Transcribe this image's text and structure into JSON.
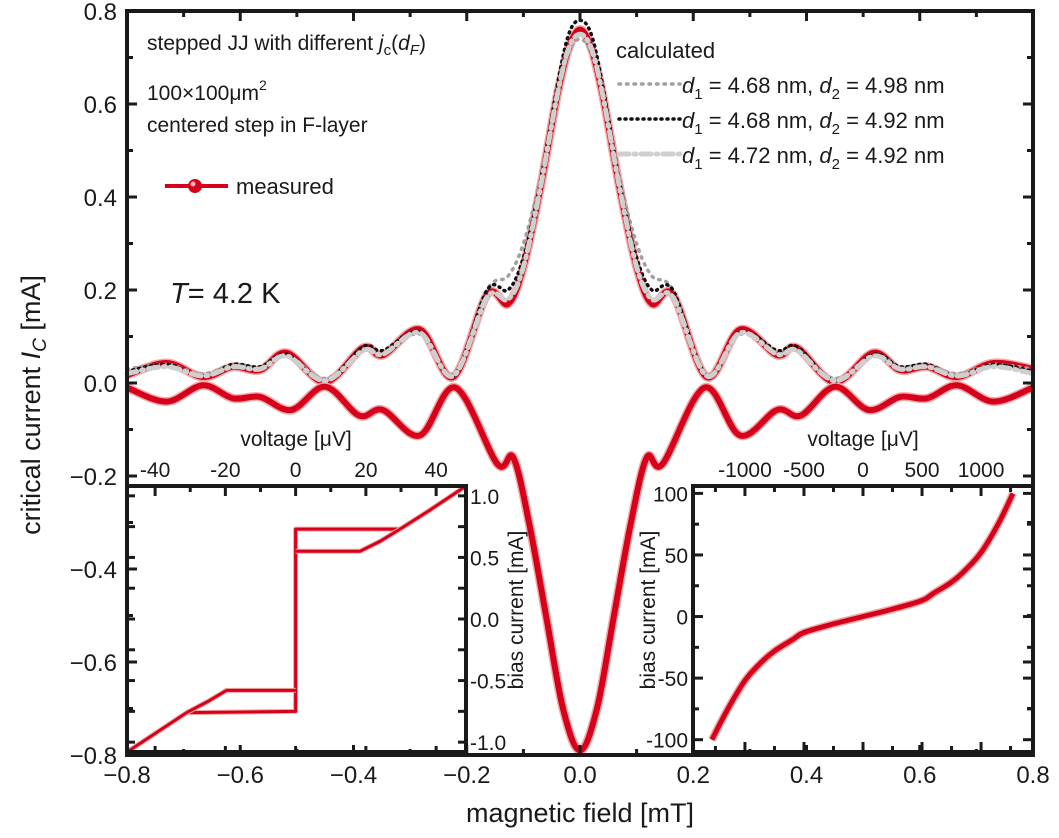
{
  "colors": {
    "measured": "#d7001c",
    "measured_halo": "#f2a9a4",
    "calc1": "#a0a0a0",
    "calc2": "#111111",
    "calc3": "#cfcfcf",
    "axis": "#1a1a1a"
  },
  "annotations": {
    "line1_pre": "stepped JJ with different ",
    "line1_j": "j",
    "line1_c": "c",
    "line1_paren": "(",
    "line1_d": "d",
    "line1_F": "F",
    "line1_close": ")",
    "line2": "100×100μm",
    "line2_sup": "2",
    "line3": "centered step in F-layer",
    "temp_T": "T",
    "temp_val": "= 4.2 K"
  },
  "legend": {
    "measured": "measured",
    "calculated_title": "calculated",
    "entries": [
      {
        "d1": "d",
        "s1": "1",
        "v1": " = 4.68 nm, ",
        "d2": "d",
        "s2": "2",
        "v2": " = 4.98 nm",
        "style": "dotted-gray"
      },
      {
        "d1": "d",
        "s1": "1",
        "v1": " = 4.68 nm, ",
        "d2": "d",
        "s2": "2",
        "v2": " = 4.92 nm",
        "style": "dotted-black"
      },
      {
        "d1": "d",
        "s1": "1",
        "v1": " = 4.72 nm, ",
        "d2": "d",
        "s2": "2",
        "v2": " = 4.92 nm",
        "style": "dash-dot-lightgray"
      }
    ]
  },
  "chart_data": [
    {
      "type": "line",
      "xlabel": "magnetic field [mT]",
      "ylabel_pre": "critical current ",
      "ylabel_I": "I",
      "ylabel_C": "C",
      "ylabel_post": " [mA]",
      "xlim": [
        -0.8,
        0.8
      ],
      "ylim": [
        -0.8,
        0.8
      ],
      "xticks": [
        "-0.8",
        "-0.6",
        "-0.4",
        "-0.2",
        "0.0",
        "0.2",
        "0.4",
        "0.6",
        "0.8"
      ],
      "yticks": [
        "-0.8",
        "-0.6",
        "-0.4",
        "-0.2",
        "0.0",
        "0.2",
        "0.4",
        "0.6",
        "0.8"
      ],
      "grid": false,
      "series": [
        {
          "name": "measured",
          "branch": "positive",
          "x": [
            -0.8,
            -0.73,
            -0.666,
            -0.613,
            -0.565,
            -0.518,
            -0.45,
            -0.383,
            -0.348,
            -0.283,
            -0.224,
            -0.164,
            -0.127,
            -0.1,
            -0.07,
            -0.04,
            -0.02,
            0,
            0.02,
            0.04,
            0.07,
            0.1,
            0.127,
            0.164,
            0.224,
            0.283,
            0.348,
            0.383,
            0.45,
            0.518,
            0.565,
            0.613,
            0.666,
            0.73,
            0.8
          ],
          "y": [
            0.017,
            0.043,
            0.013,
            0.035,
            0.028,
            0.065,
            0.002,
            0.076,
            0.06,
            0.115,
            0.013,
            0.19,
            0.17,
            0.25,
            0.42,
            0.62,
            0.72,
            0.76,
            0.72,
            0.62,
            0.42,
            0.25,
            0.17,
            0.19,
            0.013,
            0.115,
            0.06,
            0.076,
            0.002,
            0.065,
            0.028,
            0.035,
            0.013,
            0.043,
            0.03
          ]
        },
        {
          "name": "measured",
          "branch": "negative",
          "x": [
            -0.8,
            -0.73,
            -0.666,
            -0.613,
            -0.565,
            -0.51,
            -0.45,
            -0.39,
            -0.348,
            -0.283,
            -0.22,
            -0.146,
            -0.118,
            -0.09,
            -0.06,
            -0.03,
            0,
            0.03,
            0.06,
            0.09,
            0.118,
            0.146,
            0.22,
            0.283,
            0.348,
            0.39,
            0.45,
            0.51,
            0.565,
            0.613,
            0.666,
            0.73,
            0.8
          ],
          "y": [
            -0.01,
            -0.04,
            -0.005,
            -0.033,
            -0.03,
            -0.058,
            -0.008,
            -0.07,
            -0.058,
            -0.113,
            -0.01,
            -0.174,
            -0.16,
            -0.3,
            -0.5,
            -0.7,
            -0.79,
            -0.7,
            -0.5,
            -0.3,
            -0.16,
            -0.174,
            -0.01,
            -0.113,
            -0.058,
            -0.07,
            -0.008,
            -0.058,
            -0.03,
            -0.033,
            -0.005,
            -0.04,
            -0.01
          ]
        },
        {
          "name": "d1 = 4.68 nm, d2 = 4.98 nm",
          "x": [
            -0.8,
            -0.73,
            -0.666,
            -0.613,
            -0.565,
            -0.518,
            -0.45,
            -0.383,
            -0.348,
            -0.283,
            -0.224,
            -0.164,
            -0.127,
            -0.1,
            -0.07,
            -0.04,
            -0.02,
            0,
            0.02,
            0.04,
            0.07,
            0.1,
            0.127,
            0.164,
            0.224,
            0.283,
            0.348,
            0.383,
            0.45,
            0.518,
            0.565,
            0.613,
            0.666,
            0.73,
            0.8
          ],
          "y": [
            0.03,
            0.04,
            0.02,
            0.04,
            0.035,
            0.06,
            0.01,
            0.07,
            0.065,
            0.105,
            0.02,
            0.2,
            0.23,
            0.3,
            0.44,
            0.62,
            0.71,
            0.74,
            0.71,
            0.62,
            0.44,
            0.3,
            0.23,
            0.2,
            0.02,
            0.105,
            0.065,
            0.07,
            0.01,
            0.06,
            0.035,
            0.04,
            0.02,
            0.04,
            0.03
          ]
        },
        {
          "name": "d1 = 4.68 nm, d2 = 4.92 nm",
          "x": [
            -0.8,
            -0.73,
            -0.666,
            -0.613,
            -0.565,
            -0.518,
            -0.45,
            -0.383,
            -0.348,
            -0.283,
            -0.224,
            -0.164,
            -0.127,
            -0.1,
            -0.07,
            -0.04,
            -0.02,
            0,
            0.02,
            0.04,
            0.07,
            0.1,
            0.127,
            0.164,
            0.224,
            0.283,
            0.348,
            0.383,
            0.45,
            0.518,
            0.565,
            0.613,
            0.666,
            0.73,
            0.8
          ],
          "y": [
            0.025,
            0.04,
            0.015,
            0.04,
            0.035,
            0.062,
            0.005,
            0.078,
            0.07,
            0.11,
            0.015,
            0.2,
            0.2,
            0.27,
            0.43,
            0.64,
            0.75,
            0.78,
            0.75,
            0.64,
            0.43,
            0.27,
            0.2,
            0.2,
            0.015,
            0.11,
            0.07,
            0.078,
            0.005,
            0.062,
            0.035,
            0.04,
            0.015,
            0.04,
            0.025
          ]
        },
        {
          "name": "d1 = 4.72 nm, d2 = 4.92 nm",
          "x": [
            -0.8,
            -0.73,
            -0.666,
            -0.613,
            -0.565,
            -0.518,
            -0.45,
            -0.383,
            -0.348,
            -0.283,
            -0.224,
            -0.164,
            -0.127,
            -0.1,
            -0.07,
            -0.04,
            -0.02,
            0,
            0.02,
            0.04,
            0.07,
            0.1,
            0.127,
            0.164,
            0.224,
            0.283,
            0.348,
            0.383,
            0.45,
            0.518,
            0.565,
            0.613,
            0.666,
            0.73,
            0.8
          ],
          "y": [
            0.02,
            0.035,
            0.015,
            0.035,
            0.03,
            0.058,
            0.005,
            0.07,
            0.062,
            0.108,
            0.015,
            0.185,
            0.18,
            0.25,
            0.42,
            0.62,
            0.72,
            0.75,
            0.72,
            0.62,
            0.42,
            0.25,
            0.18,
            0.185,
            0.015,
            0.108,
            0.062,
            0.07,
            0.005,
            0.058,
            0.03,
            0.035,
            0.015,
            0.035,
            0.02
          ]
        }
      ]
    },
    {
      "type": "line",
      "inset": "bottom-left",
      "xlabel": "voltage [μV]",
      "ylabel": "bias current [mA]",
      "xlim": [
        -48,
        48.5
      ],
      "ylim": [
        -1.08,
        1.08
      ],
      "xticks": [
        "-40",
        "-20",
        "0",
        "20",
        "40"
      ],
      "yticks": [
        "1.0",
        "0.5",
        "0.0",
        "-0.5",
        "-1.0"
      ],
      "series": [
        {
          "name": "measured",
          "x": [
            -48,
            -40,
            -31,
            0,
            0,
            0,
            29.7,
            38,
            48.5
          ],
          "y": [
            -1.08,
            -0.93,
            -0.76,
            -0.75,
            0.73,
            0.73,
            0.73,
            0.88,
            1.08
          ]
        },
        {
          "name": "measured",
          "x": [
            -31,
            -25,
            -19.7,
            0
          ],
          "y": [
            -0.76,
            -0.67,
            -0.58,
            -0.58
          ]
        },
        {
          "name": "measured",
          "x": [
            0,
            18.3,
            24,
            29.7
          ],
          "y": [
            0.55,
            0.55,
            0.63,
            0.73
          ]
        }
      ]
    },
    {
      "type": "line",
      "inset": "bottom-right",
      "xlabel": "voltage [μV]",
      "ylabel": "bias current [mA]",
      "xlim": [
        -1440,
        1440
      ],
      "ylim": [
        -110,
        106
      ],
      "xticks": [
        "-1000",
        "-500",
        "0",
        "500",
        "1000"
      ],
      "yticks": [
        "100",
        "50",
        "0",
        "-50",
        "-100"
      ],
      "series": [
        {
          "name": "measured",
          "x": [
            -1280,
            -1150,
            -1000,
            -870,
            -750,
            -600,
            -500,
            -250,
            0,
            250,
            500,
            600,
            750,
            870,
            1000,
            1150,
            1270
          ],
          "y": [
            -100,
            -76,
            -52,
            -38,
            -28,
            -19,
            -13,
            -6,
            0,
            6,
            13,
            19,
            28,
            38,
            52,
            76,
            100
          ]
        }
      ]
    }
  ]
}
